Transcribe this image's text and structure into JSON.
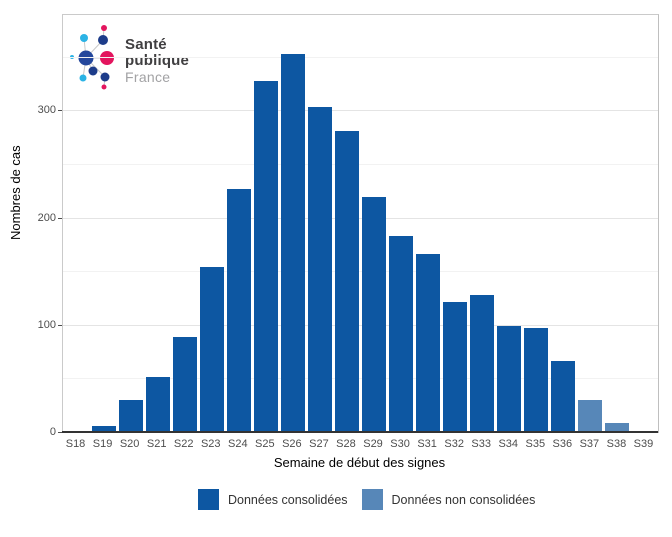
{
  "colors": {
    "bar_consolidated": "#0d57a2",
    "bar_non_consolidated": "#5787b8",
    "grid_major": "#e4e4e4",
    "grid_minor": "#f2f2f2",
    "axis_line": "#333333",
    "panel_border": "#cacaca",
    "tick_text": "#4d4d4d",
    "title_text": "#000000",
    "logo_navy": "#24479c",
    "logo_dark_navy": "#1d3c8a",
    "logo_cyan": "#2bb3e5",
    "logo_pink": "#e3155e"
  },
  "logo": {
    "icon": "spf-logo-network-icon",
    "line1": "Santé",
    "line2": "publique",
    "line3": "France"
  },
  "chart_data": {
    "type": "bar",
    "title": "",
    "xlabel": "Semaine de début des signes",
    "ylabel": "Nombres de cas",
    "categories": [
      "S18",
      "S19",
      "S20",
      "S21",
      "S22",
      "S23",
      "S24",
      "S25",
      "S26",
      "S27",
      "S28",
      "S29",
      "S30",
      "S31",
      "S32",
      "S33",
      "S34",
      "S35",
      "S36",
      "S37",
      "S38",
      "S39"
    ],
    "series": [
      {
        "name": "Données consolidées",
        "color": "#0d57a2",
        "values": [
          1,
          7,
          31,
          52,
          90,
          155,
          228,
          328,
          354,
          304,
          282,
          220,
          184,
          167,
          122,
          129,
          100,
          98,
          67,
          0,
          0,
          0
        ]
      },
      {
        "name": "Données non consolidées",
        "color": "#5787b8",
        "values": [
          0,
          0,
          0,
          0,
          0,
          0,
          0,
          0,
          0,
          0,
          0,
          0,
          0,
          0,
          0,
          0,
          0,
          0,
          0,
          31,
          9,
          0
        ]
      }
    ],
    "ylim": [
      0,
      390
    ],
    "yticks": [
      0,
      100,
      200,
      300
    ],
    "minor_gridlines": [
      50,
      150,
      250,
      350
    ],
    "grid": true,
    "legend_position": "bottom"
  },
  "legend": {
    "items": [
      {
        "label": "Données consolidées",
        "color": "#0d57a2"
      },
      {
        "label": "Données non consolidées",
        "color": "#5787b8"
      }
    ]
  }
}
